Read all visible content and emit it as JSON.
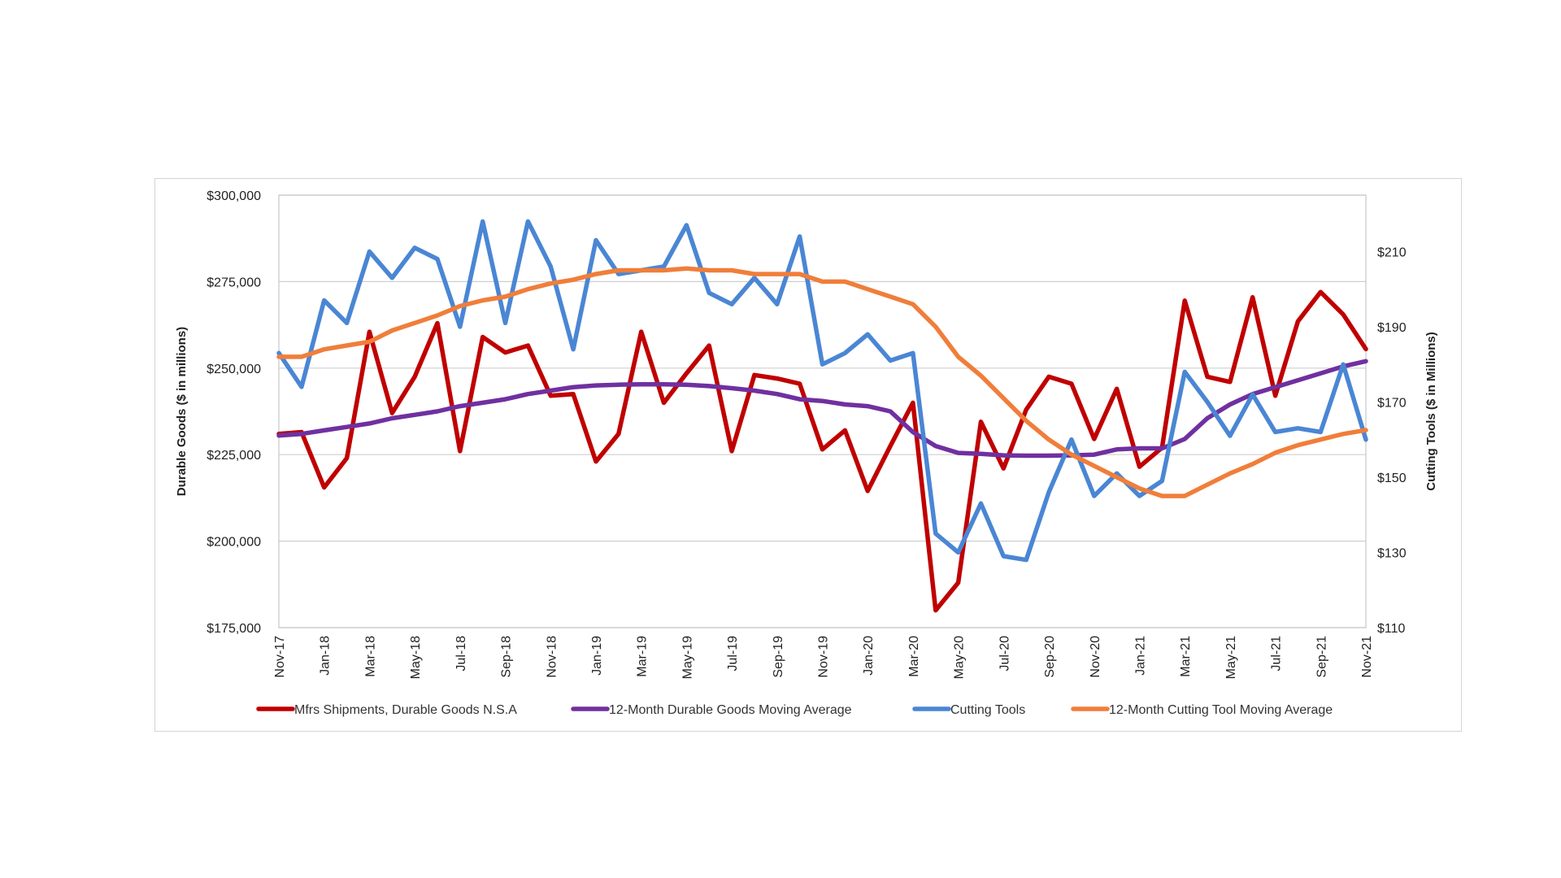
{
  "chart_data": {
    "type": "line",
    "title": "",
    "ylabel": "Durable Goods ($ in millions)",
    "y2label": "Cutting Tools ($ in Millions)",
    "ylim": [
      175000,
      300000
    ],
    "y2lim": [
      110,
      225
    ],
    "yticks": [
      "$175,000",
      "$200,000",
      "$225,000",
      "$250,000",
      "$275,000",
      "$300,000"
    ],
    "yticks_values": [
      175000,
      200000,
      225000,
      250000,
      275000,
      300000
    ],
    "y2ticks": [
      "$110",
      "$130",
      "$150",
      "$170",
      "$190",
      "$210"
    ],
    "y2ticks_values": [
      110,
      130,
      150,
      170,
      190,
      210
    ],
    "grid": true,
    "legend_position": "bottom",
    "x": [
      "Nov-17",
      "Dec-17",
      "Jan-18",
      "Feb-18",
      "Mar-18",
      "Apr-18",
      "May-18",
      "Jun-18",
      "Jul-18",
      "Aug-18",
      "Sep-18",
      "Oct-18",
      "Nov-18",
      "Dec-18",
      "Jan-19",
      "Feb-19",
      "Mar-19",
      "Apr-19",
      "May-19",
      "Jun-19",
      "Jul-19",
      "Aug-19",
      "Sep-19",
      "Oct-19",
      "Nov-19",
      "Dec-19",
      "Jan-20",
      "Feb-20",
      "Mar-20",
      "Apr-20",
      "May-20",
      "Jun-20",
      "Jul-20",
      "Aug-20",
      "Sep-20",
      "Oct-20",
      "Nov-20",
      "Dec-20",
      "Jan-21",
      "Feb-21",
      "Mar-21",
      "Apr-21",
      "May-21",
      "Jun-21",
      "Jul-21",
      "Aug-21",
      "Sep-21",
      "Oct-21",
      "Nov-21"
    ],
    "xtick_labels": [
      "Nov-17",
      "Jan-18",
      "Mar-18",
      "May-18",
      "Jul-18",
      "Sep-18",
      "Nov-18",
      "Jan-19",
      "Mar-19",
      "May-19",
      "Jul-19",
      "Sep-19",
      "Nov-19",
      "Jan-20",
      "Mar-20",
      "May-20",
      "Jul-20",
      "Sep-20",
      "Nov-20",
      "Jan-21",
      "Mar-21",
      "May-21",
      "Jul-21",
      "Sep-21",
      "Nov-21"
    ],
    "series": [
      {
        "name": "Mfrs Shipments, Durable Goods N.S.A",
        "axis": "left",
        "color": "#c00000",
        "values": [
          231000,
          231500,
          215500,
          224000,
          260500,
          237000,
          247500,
          263000,
          226000,
          259000,
          254500,
          256500,
          242000,
          242500,
          223000,
          231000,
          260500,
          240000,
          248500,
          256500,
          226000,
          248000,
          247000,
          245500,
          226500,
          232000,
          214500,
          227500,
          240000,
          180000,
          188000,
          234500,
          221000,
          238000,
          247500,
          245500,
          229500,
          244000,
          221500,
          227000,
          269500,
          247500,
          246000,
          270500,
          242000,
          263500,
          272000,
          265500,
          255500
        ]
      },
      {
        "name": "12-Month Durable Goods Moving Average",
        "axis": "left",
        "color": "#7030a0",
        "values": [
          230500,
          231000,
          232000,
          233000,
          234000,
          235500,
          236500,
          237500,
          239000,
          240000,
          241000,
          242500,
          243500,
          244500,
          245000,
          245200,
          245300,
          245300,
          245200,
          244800,
          244200,
          243500,
          242500,
          241000,
          240500,
          239500,
          239000,
          237500,
          231500,
          227500,
          225500,
          225200,
          224800,
          224700,
          224700,
          224800,
          225000,
          226500,
          226800,
          226800,
          229500,
          235500,
          239500,
          242500,
          244500,
          246500,
          248500,
          250500,
          252000
        ]
      },
      {
        "name": "Cutting Tools",
        "axis": "right",
        "color": "#4a86d4",
        "values": [
          183,
          174,
          197,
          191,
          210,
          203,
          211,
          208,
          190,
          218,
          191,
          218,
          206,
          184,
          213,
          204,
          205,
          206,
          217,
          199,
          196,
          203,
          196,
          214,
          180,
          183,
          188,
          181,
          183,
          135,
          130,
          143,
          129,
          128,
          146,
          160,
          145,
          151,
          145,
          149,
          178,
          170,
          161,
          172,
          162,
          163,
          162,
          180,
          160
        ]
      },
      {
        "name": "12-Month Cutting Tool Moving Average",
        "axis": "right",
        "color": "#f07e3a",
        "values": [
          182,
          182,
          184,
          185,
          186,
          189,
          191,
          193,
          195.5,
          197,
          198,
          200,
          201.5,
          202.5,
          204,
          205,
          205,
          205,
          205.5,
          205,
          205,
          204,
          204,
          204,
          202,
          202,
          200,
          198,
          196,
          190,
          182,
          177,
          171,
          165,
          160,
          156,
          153,
          150,
          147,
          145,
          145,
          148,
          151,
          153.5,
          156.5,
          158.5,
          160,
          161.5,
          162.5
        ]
      }
    ]
  }
}
